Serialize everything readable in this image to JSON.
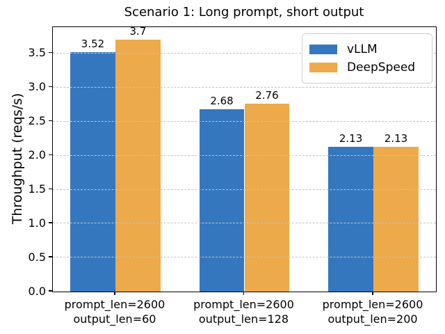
{
  "chart_data": {
    "type": "bar",
    "title": "Scenario 1: Long prompt, short output",
    "ylabel": "Throughput (reqs/s)",
    "xlabel": "",
    "categories": [
      [
        "prompt_len=2600",
        "output_len=60"
      ],
      [
        "prompt_len=2600",
        "output_len=128"
      ],
      [
        "prompt_len=2600",
        "output_len=200"
      ]
    ],
    "series": [
      {
        "name": "vLLM",
        "color": "#3577be",
        "values": [
          3.52,
          2.68,
          2.13
        ],
        "labels": [
          "3.52",
          "2.68",
          "2.13"
        ]
      },
      {
        "name": "DeepSpeed",
        "color": "#edaa4b",
        "values": [
          3.7,
          2.76,
          2.13
        ],
        "labels": [
          "3.7",
          "2.76",
          "2.13"
        ]
      }
    ],
    "ylim": [
      0,
      3.885
    ],
    "yticks": [
      "0.0",
      "0.5",
      "1.0",
      "1.5",
      "2.0",
      "2.5",
      "3.0",
      "3.5"
    ],
    "grid": true,
    "grid_color": "#c3c3c3",
    "grid_style": "dashed",
    "grid_above_bars": true,
    "legend_position": "upper right",
    "bar_width_fraction": 0.35
  }
}
